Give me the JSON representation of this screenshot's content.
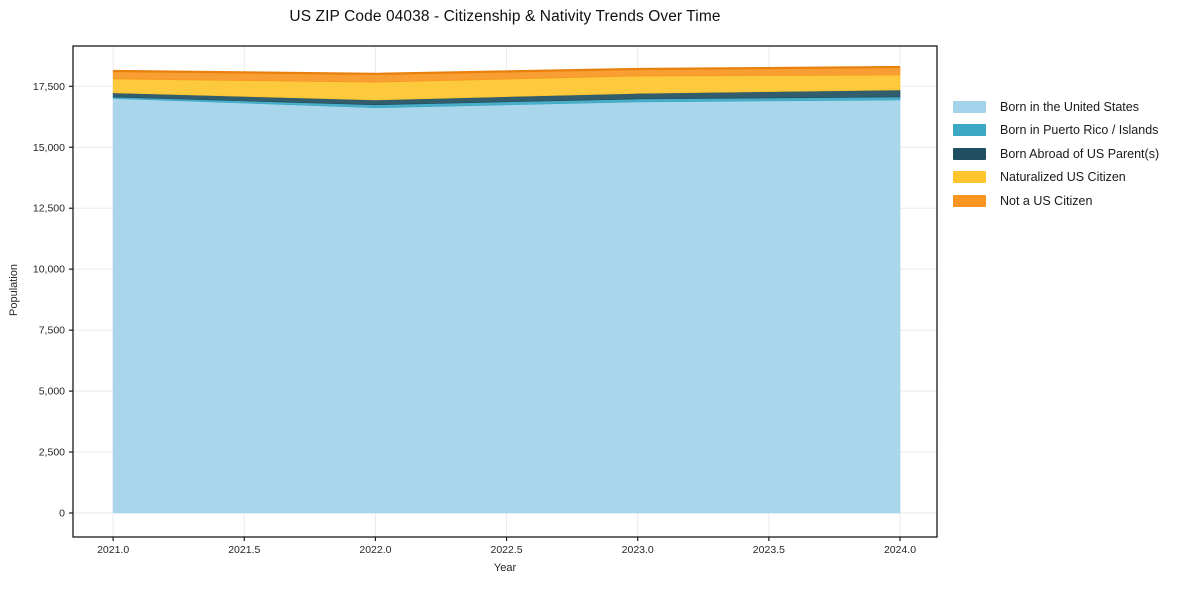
{
  "chart_data": {
    "type": "area",
    "stacked": true,
    "title": "US ZIP Code 04038 - Citizenship & Nativity Trends Over Time",
    "xlabel": "Year",
    "ylabel": "Population",
    "x": [
      2021,
      2022,
      2023,
      2024
    ],
    "series": [
      {
        "name": "Born in the United States",
        "color": "#a3d3ea",
        "values": [
          17000,
          16620,
          16860,
          16940
        ]
      },
      {
        "name": "Born in Puerto Rico / Islands",
        "color": "#3ba8c4",
        "values": [
          60,
          120,
          120,
          120
        ]
      },
      {
        "name": "Born Abroad of US Parent(s)",
        "color": "#204f61",
        "values": [
          170,
          200,
          230,
          290
        ]
      },
      {
        "name": "Naturalized US Citizen",
        "color": "#fdc42d",
        "values": [
          570,
          730,
          710,
          610
        ]
      },
      {
        "name": "Not a US Citizen",
        "color": "#f89621",
        "values": [
          330,
          340,
          290,
          330
        ]
      }
    ],
    "totals": [
      18130,
      18010,
      18210,
      18290
    ],
    "x_tick_values": [
      2021.0,
      2021.5,
      2022.0,
      2022.5,
      2023.0,
      2023.5,
      2024.0
    ],
    "x_tick_labels": [
      "2021.0",
      "2021.5",
      "2022.0",
      "2022.5",
      "2023.0",
      "2023.5",
      "2024.0"
    ],
    "y_tick_values": [
      0,
      2500,
      5000,
      7500,
      10000,
      12500,
      15000,
      17500
    ],
    "y_tick_labels": [
      "0",
      "2,500",
      "5,000",
      "7,500",
      "10,000",
      "12,500",
      "15,000",
      "17,500"
    ],
    "xlim": [
      2020.847,
      2024.141
    ],
    "ylim": [
      -984,
      19153
    ],
    "grid": true,
    "gridline_color": "#ebebee",
    "axis_color": "#1a1a1a",
    "top_edge_color": "#e8800d",
    "legend_position": "right-outside"
  }
}
